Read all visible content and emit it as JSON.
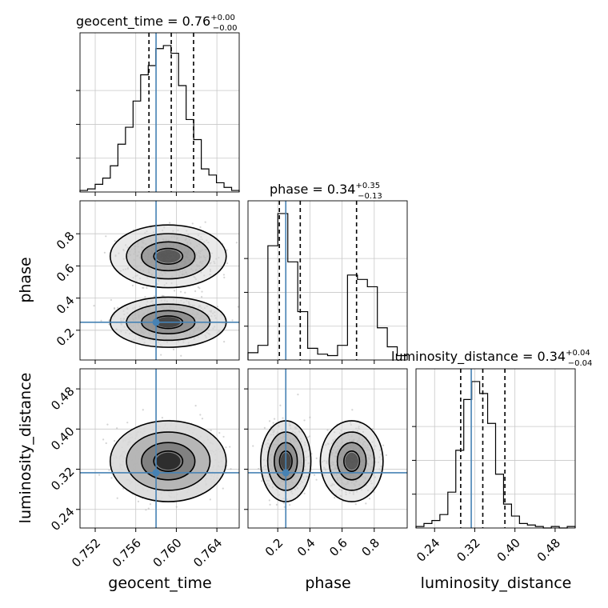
{
  "chart_data": {
    "type": "corner",
    "parameters": [
      "geocent_time",
      "phase",
      "luminosity_distance"
    ],
    "injection": {
      "geocent_time": 0.758,
      "phase": 0.25,
      "luminosity_distance": 0.313
    },
    "titles": {
      "geocent_time": {
        "name": "geocent_time",
        "median": "0.76",
        "plus": "+0.00",
        "minus": "−0.00"
      },
      "phase": {
        "name": "phase",
        "median": "0.34",
        "plus": "+0.35",
        "minus": "−0.13"
      },
      "luminosity_distance": {
        "name": "luminosity_distance",
        "median": "0.34",
        "plus": "+0.04",
        "minus": "−0.04"
      }
    },
    "axis_labels": {
      "geocent_time": "geocent_time",
      "phase": "phase",
      "luminosity_distance": "luminosity_distance"
    },
    "ranges": {
      "geocent_time": [
        0.7505,
        0.7662
      ],
      "phase": [
        0.015,
        1.005
      ],
      "luminosity_distance": [
        0.203,
        0.52
      ]
    },
    "ticks": {
      "geocent_time": [
        0.752,
        0.756,
        0.76,
        0.764
      ],
      "phase": [
        0.2,
        0.4,
        0.6,
        0.8
      ],
      "luminosity_distance": [
        0.24,
        0.32,
        0.4,
        0.48
      ]
    },
    "tick_labels": {
      "geocent_time": [
        "0.752",
        "0.756",
        "0.760",
        "0.764"
      ],
      "phase": [
        "0.2",
        "0.4",
        "0.6",
        "0.8"
      ],
      "luminosity_distance": [
        "0.24",
        "0.32",
        "0.40",
        "0.48"
      ]
    },
    "quantiles": {
      "geocent_time": [
        0.7573,
        0.7595,
        0.7617
      ],
      "phase": [
        0.21,
        0.34,
        0.69
      ],
      "luminosity_distance": [
        0.292,
        0.336,
        0.38
      ]
    },
    "histograms": {
      "geocent_time": {
        "edges_range": [
          0.7505,
          0.7662
        ],
        "counts": [
          1,
          2,
          5,
          9,
          17,
          31,
          42,
          59,
          76,
          82,
          93,
          95,
          90,
          69,
          47,
          34,
          15,
          11,
          6,
          3,
          1
        ]
      },
      "phase": {
        "edges_range": [
          0.015,
          1.005
        ],
        "counts": [
          5,
          10,
          78,
          100,
          67,
          33,
          8,
          4,
          3,
          10,
          58,
          55,
          50,
          22,
          9,
          3
        ]
      },
      "luminosity_distance": {
        "edges_range": [
          0.203,
          0.52
        ],
        "counts": [
          1,
          3,
          5,
          9,
          24,
          52,
          86,
          98,
          90,
          70,
          36,
          16,
          8,
          3,
          2,
          1,
          0,
          1,
          0,
          1
        ]
      }
    },
    "grid": true,
    "colors": {
      "injection": "#4682b4",
      "hist": "#000000",
      "contour": "#000000",
      "points": "#b0b0b0",
      "grid": "#c8c8c8"
    }
  }
}
